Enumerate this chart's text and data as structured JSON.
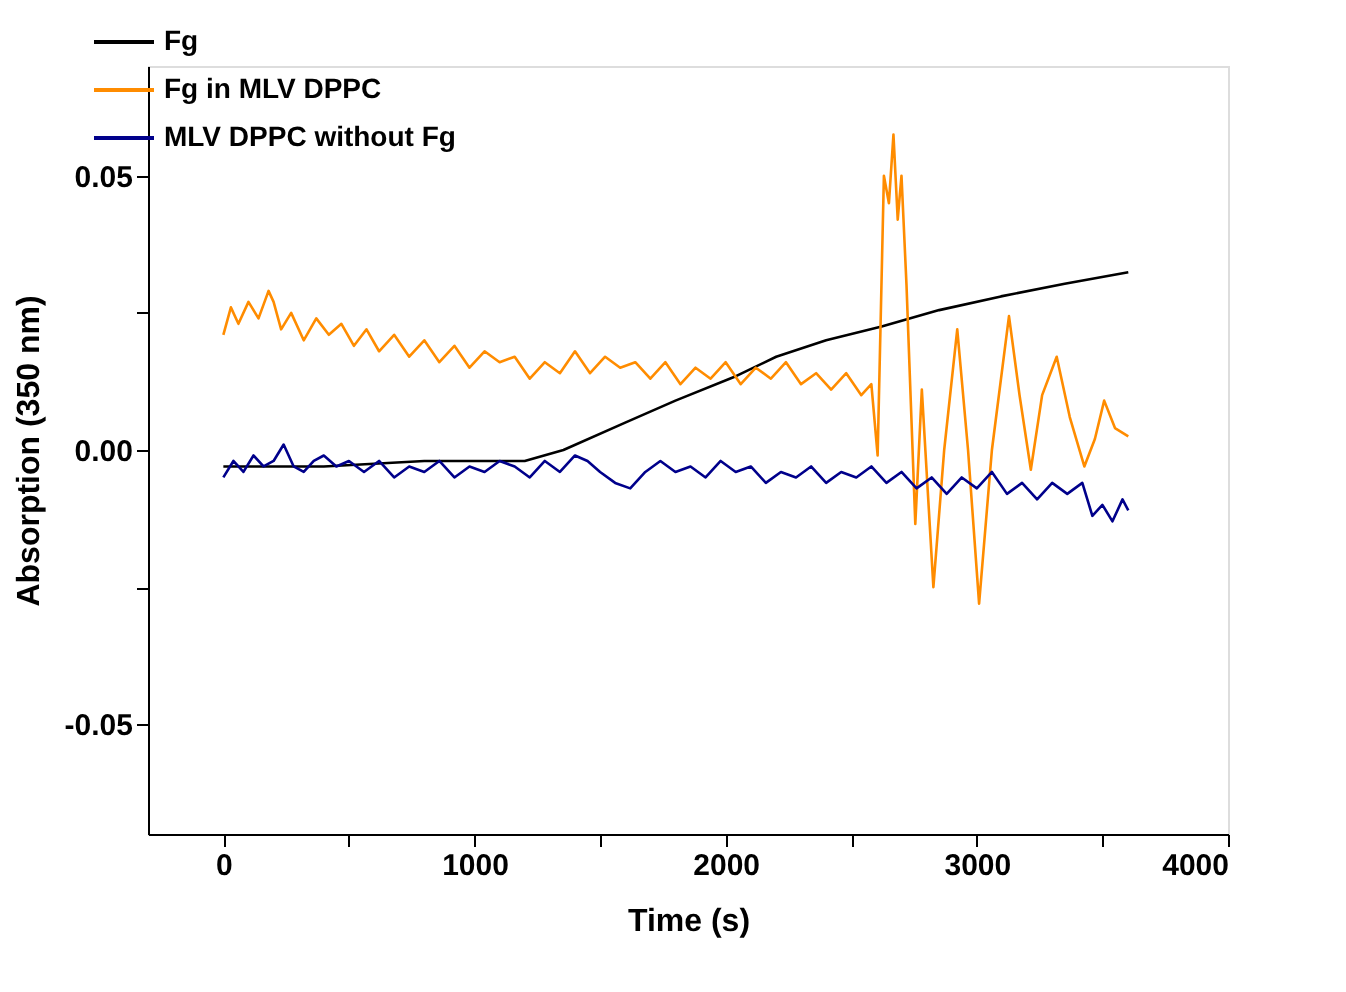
{
  "chart_data": {
    "type": "line",
    "xlabel": "Time (s)",
    "ylabel": "Absorption (350 nm)",
    "xlim": [
      -300,
      4000
    ],
    "ylim": [
      -0.07,
      0.07
    ],
    "xticks": [
      0,
      {
        "value": 500,
        "label": null
      },
      1000,
      {
        "value": 1500,
        "label": null
      },
      2000,
      {
        "value": 2500,
        "label": null
      },
      3000,
      {
        "value": 3500,
        "label": null
      },
      4000
    ],
    "yticks": [
      {
        "value": -0.05,
        "label": "-0.05"
      },
      {
        "value": -0.025,
        "label": null
      },
      {
        "value": 0,
        "label": "0.00"
      },
      {
        "value": 0.025,
        "label": null
      },
      {
        "value": 0.05,
        "label": "0.05"
      }
    ],
    "grid": false,
    "legend": "top left",
    "marker": "none",
    "line_style": "solid",
    "series": [
      {
        "name": "Fg",
        "color": "#000000",
        "x": [
          0,
          400,
          800,
          1200,
          1354,
          1600,
          1800,
          2043,
          2201,
          2400,
          2621,
          2850,
          3096,
          3350,
          3603
        ],
        "values": [
          -0.003,
          -0.003,
          -0.002,
          -0.002,
          0,
          0.005,
          0.009,
          0.0135,
          0.017,
          0.02,
          0.0225,
          0.0255,
          0.028,
          0.0303,
          0.0324
        ]
      },
      {
        "name": "Fg in MLV DPPC",
        "color": "#ff8c00",
        "x": [
          0,
          30,
          60,
          100,
          140,
          180,
          200,
          230,
          270,
          320,
          370,
          420,
          470,
          520,
          570,
          620,
          680,
          740,
          800,
          860,
          920,
          980,
          1040,
          1100,
          1160,
          1220,
          1280,
          1340,
          1400,
          1460,
          1520,
          1580,
          1640,
          1700,
          1760,
          1820,
          1880,
          1940,
          2000,
          2060,
          2120,
          2180,
          2240,
          2300,
          2360,
          2420,
          2480,
          2540,
          2580,
          2605,
          2630,
          2650,
          2668,
          2685,
          2700,
          2720,
          2755,
          2781,
          2827,
          2870,
          2922,
          2965,
          3009,
          3060,
          3128,
          3170,
          3215,
          3260,
          3318,
          3370,
          3428,
          3470,
          3507,
          3550,
          3603
        ],
        "values": [
          0.021,
          0.026,
          0.023,
          0.027,
          0.024,
          0.029,
          0.027,
          0.022,
          0.025,
          0.02,
          0.024,
          0.021,
          0.023,
          0.019,
          0.022,
          0.018,
          0.021,
          0.017,
          0.02,
          0.016,
          0.019,
          0.015,
          0.018,
          0.016,
          0.017,
          0.013,
          0.016,
          0.014,
          0.018,
          0.014,
          0.017,
          0.015,
          0.016,
          0.013,
          0.016,
          0.012,
          0.015,
          0.013,
          0.016,
          0.012,
          0.015,
          0.013,
          0.016,
          0.012,
          0.014,
          0.011,
          0.014,
          0.01,
          0.012,
          -0.001,
          0.05,
          0.045,
          0.0575,
          0.042,
          0.05,
          0.03,
          -0.0135,
          0.011,
          -0.025,
          0.0,
          0.022,
          0.0,
          -0.028,
          0.0,
          0.0244,
          0.01,
          -0.0036,
          0.01,
          0.017,
          0.006,
          -0.003,
          0.002,
          0.009,
          0.004,
          0.0025
        ]
      },
      {
        "name": "MLV DPPC without Fg",
        "color": "#00008b",
        "x": [
          0,
          40,
          80,
          120,
          160,
          200,
          240,
          280,
          320,
          360,
          400,
          450,
          500,
          560,
          620,
          680,
          740,
          800,
          860,
          920,
          980,
          1040,
          1100,
          1160,
          1220,
          1280,
          1340,
          1400,
          1450,
          1500,
          1560,
          1620,
          1680,
          1740,
          1800,
          1860,
          1920,
          1980,
          2040,
          2100,
          2160,
          2220,
          2280,
          2340,
          2400,
          2460,
          2520,
          2580,
          2640,
          2700,
          2760,
          2820,
          2880,
          2940,
          3000,
          3060,
          3120,
          3180,
          3240,
          3300,
          3360,
          3420,
          3460,
          3500,
          3540,
          3580,
          3603
        ],
        "values": [
          -0.005,
          -0.002,
          -0.004,
          -0.001,
          -0.003,
          -0.002,
          0.001,
          -0.003,
          -0.004,
          -0.002,
          -0.001,
          -0.003,
          -0.002,
          -0.004,
          -0.002,
          -0.005,
          -0.003,
          -0.004,
          -0.002,
          -0.005,
          -0.003,
          -0.004,
          -0.002,
          -0.003,
          -0.005,
          -0.002,
          -0.004,
          -0.001,
          -0.002,
          -0.004,
          -0.006,
          -0.007,
          -0.004,
          -0.002,
          -0.004,
          -0.003,
          -0.005,
          -0.002,
          -0.004,
          -0.003,
          -0.006,
          -0.004,
          -0.005,
          -0.003,
          -0.006,
          -0.004,
          -0.005,
          -0.003,
          -0.006,
          -0.004,
          -0.007,
          -0.005,
          -0.008,
          -0.005,
          -0.007,
          -0.004,
          -0.008,
          -0.006,
          -0.009,
          -0.006,
          -0.008,
          -0.006,
          -0.012,
          -0.01,
          -0.013,
          -0.009,
          -0.011
        ]
      }
    ]
  }
}
